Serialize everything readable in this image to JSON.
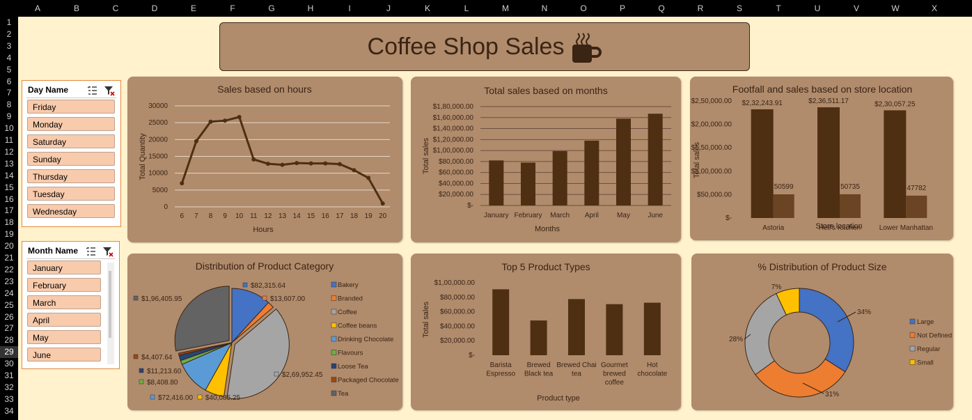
{
  "columns": [
    "A",
    "B",
    "C",
    "D",
    "E",
    "F",
    "G",
    "H",
    "I",
    "J",
    "K",
    "L",
    "M",
    "N",
    "O",
    "P",
    "Q",
    "R",
    "S",
    "T",
    "U",
    "V",
    "W",
    "X"
  ],
  "rows": [
    "1",
    "2",
    "3",
    "4",
    "5",
    "6",
    "7",
    "8",
    "9",
    "10",
    "11",
    "12",
    "13",
    "14",
    "15",
    "16",
    "17",
    "18",
    "19",
    "20",
    "21",
    "22",
    "23",
    "24",
    "25",
    "26",
    "27",
    "28",
    "29",
    "30",
    "31",
    "32",
    "33",
    "34"
  ],
  "selected_row": "29",
  "dashboard_title": "Coffee Shop Sales",
  "colors": {
    "sheet_bg": "#fff2cc",
    "panel_bg": "#b08b6c",
    "bar": "#4e2f12",
    "bar2": "#6b4424",
    "slicer_item": "#f8cbad",
    "slicer_border": "#e08a3c"
  },
  "day_slicer": {
    "title": "Day Name",
    "items": [
      "Friday",
      "Monday",
      "Saturday",
      "Sunday",
      "Thursday",
      "Tuesday",
      "Wednesday"
    ]
  },
  "month_slicer": {
    "title": "Month Name",
    "items": [
      "January",
      "February",
      "March",
      "April",
      "May",
      "June"
    ]
  },
  "icons": [
    "multi-select-icon",
    "clear-filter-icon",
    "coffee-cup-icon"
  ],
  "chart_data": [
    {
      "type": "line",
      "title": "Sales based on hours",
      "xlabel": "Hours",
      "ylabel": "Total Quantity",
      "x": [
        6,
        7,
        8,
        9,
        10,
        11,
        12,
        13,
        14,
        15,
        16,
        17,
        18,
        19,
        20
      ],
      "values": [
        7000,
        19500,
        25300,
        25600,
        26700,
        14100,
        12800,
        12500,
        13000,
        12900,
        12900,
        12700,
        10900,
        8600,
        1000
      ],
      "ylim": [
        0,
        30000
      ],
      "yticks": [
        "0",
        "5000",
        "10000",
        "15000",
        "20000",
        "25000",
        "30000"
      ],
      "grid": true
    },
    {
      "type": "bar",
      "title": "Total sales based on months",
      "xlabel": "Months",
      "ylabel": "Total sales",
      "categories": [
        "January",
        "February",
        "March",
        "April",
        "May",
        "June"
      ],
      "values": [
        82000,
        78000,
        99000,
        118000,
        158000,
        167000
      ],
      "ylim": [
        0,
        180000
      ],
      "yticks": [
        "$-",
        "$20,000.00",
        "$40,000.00",
        "$60,000.00",
        "$80,000.00",
        "$1,00,000.00",
        "$1,20,000.00",
        "$1,40,000.00",
        "$1,60,000.00",
        "$1,80,000.00"
      ],
      "grid": true
    },
    {
      "type": "bar",
      "title": "Footfall and sales based on store location",
      "xlabel": "Store location",
      "ylabel": "Total sales",
      "categories": [
        "Astoria",
        "Hell's Kitchen",
        "Lower Manhattan"
      ],
      "series": [
        {
          "values": [
            232243.91,
            236511.17,
            230057.25
          ],
          "labels": [
            "$2,32,243.91",
            "$2,36,511.17",
            "$2,30,057.25"
          ]
        },
        {
          "values": [
            50599,
            50735,
            47782
          ],
          "labels": [
            "50599",
            "50735",
            "47782"
          ]
        }
      ],
      "ylim": [
        0,
        250000
      ],
      "yticks": [
        "$-",
        "$50,000.00",
        "$1,00,000.00",
        "$1,50,000.00",
        "$2,00,000.00",
        "$2,50,000.00"
      ]
    },
    {
      "type": "pie",
      "title": "Distribution of Product Category",
      "slices": [
        {
          "name": "Bakery",
          "value": 82315.64,
          "label": "$82,315.64",
          "color": "#4472c4"
        },
        {
          "name": "Branded",
          "value": 13607.0,
          "label": "$13,607.00",
          "color": "#ed7d31"
        },
        {
          "name": "Coffee",
          "value": 269952.45,
          "label": "$2,69,952.45",
          "color": "#a5a5a5"
        },
        {
          "name": "Coffee beans",
          "value": 40085.25,
          "label": "$40,085.25",
          "color": "#ffc000"
        },
        {
          "name": "Drinking Chocolate",
          "value": 72416.0,
          "label": "$72,416.00",
          "color": "#5b9bd5"
        },
        {
          "name": "Flavours",
          "value": 8408.8,
          "label": "$8,408.80",
          "color": "#70ad47"
        },
        {
          "name": "Loose Tea",
          "value": 11213.6,
          "label": "$11,213.60",
          "color": "#264478"
        },
        {
          "name": "Packaged Chocolate",
          "value": 4407.64,
          "label": "$4,407.64",
          "color": "#9e480e"
        },
        {
          "name": "Tea",
          "value": 196405.95,
          "label": "$1,96,405.95",
          "color": "#636363"
        }
      ],
      "legend": "right"
    },
    {
      "type": "bar",
      "title": "Top 5 Product Types",
      "xlabel": "Product type",
      "ylabel": "Total sales",
      "categories": [
        "Barista Espresso",
        "Brewed Black tea",
        "Brewed Chai tea",
        "Gourmet brewed coffee",
        "Hot chocolate"
      ],
      "category_lines": [
        [
          "Barista",
          "Espresso"
        ],
        [
          "Brewed",
          "Black tea"
        ],
        [
          "Brewed Chai",
          "tea"
        ],
        [
          "Gourmet",
          "brewed",
          "coffee"
        ],
        [
          "Hot",
          "chocolate"
        ]
      ],
      "values": [
        91000,
        48000,
        77500,
        70500,
        72500
      ],
      "ylim": [
        0,
        100000
      ],
      "yticks": [
        "$-",
        "$20,000.00",
        "$40,000.00",
        "$60,000.00",
        "$80,000.00",
        "$1,00,000.00"
      ]
    },
    {
      "type": "pie",
      "title": "% Distribution of Product Size",
      "donut": true,
      "slices": [
        {
          "name": "Large",
          "value": 34,
          "label": "34%",
          "color": "#4472c4"
        },
        {
          "name": "Not Defined",
          "value": 31,
          "label": "31%",
          "color": "#ed7d31"
        },
        {
          "name": "Regular",
          "value": 28,
          "label": "28%",
          "color": "#a5a5a5"
        },
        {
          "name": "Small",
          "value": 7,
          "label": "7%",
          "color": "#ffc000"
        }
      ],
      "legend": "right"
    }
  ]
}
